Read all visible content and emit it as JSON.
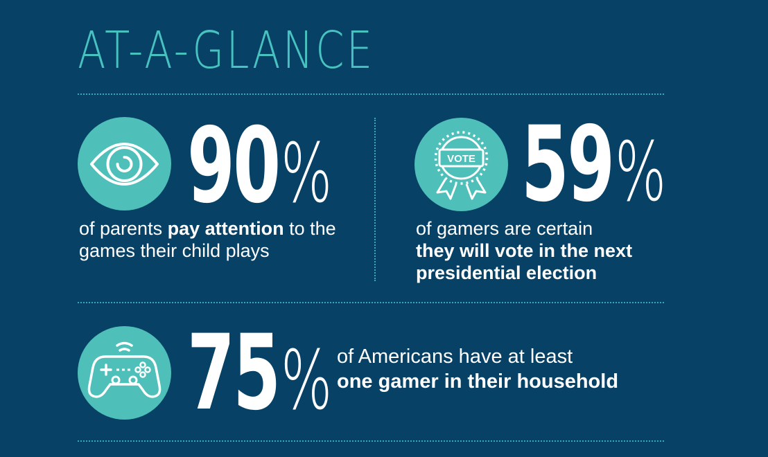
{
  "title": "AT-A-GLANCE",
  "colors": {
    "background": "#074166",
    "accent": "#48c2c0",
    "circle": "#4ec0b9",
    "text": "#ffffff"
  },
  "stats": [
    {
      "icon": "eye-icon",
      "number": "90",
      "percent": "%",
      "text_before": "of parents ",
      "text_bold": "pay attention",
      "text_after": " to the games their child plays"
    },
    {
      "icon": "vote-ribbon-icon",
      "icon_label": "VOTE",
      "number": "59",
      "percent": "%",
      "text_before": "of gamers are certain",
      "text_bold": "they will vote in the next presidential election",
      "text_after": ""
    },
    {
      "icon": "game-controller-icon",
      "number": "75",
      "percent": "%",
      "text_before": "of Americans have at least",
      "text_bold": "one gamer in their household",
      "text_after": ""
    }
  ]
}
